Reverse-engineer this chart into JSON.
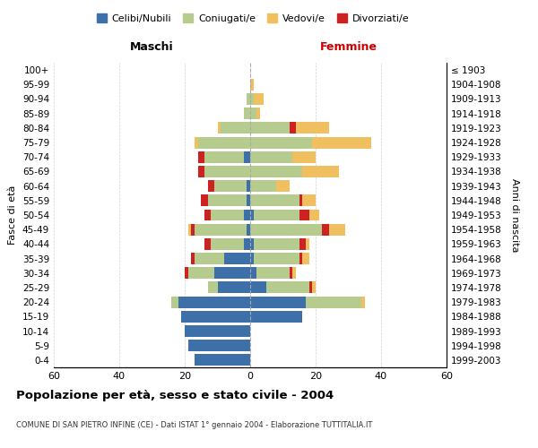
{
  "age_groups": [
    "0-4",
    "5-9",
    "10-14",
    "15-19",
    "20-24",
    "25-29",
    "30-34",
    "35-39",
    "40-44",
    "45-49",
    "50-54",
    "55-59",
    "60-64",
    "65-69",
    "70-74",
    "75-79",
    "80-84",
    "85-89",
    "90-94",
    "95-99",
    "100+"
  ],
  "birth_years": [
    "1999-2003",
    "1994-1998",
    "1989-1993",
    "1984-1988",
    "1979-1983",
    "1974-1978",
    "1969-1973",
    "1964-1968",
    "1959-1963",
    "1954-1958",
    "1949-1953",
    "1944-1948",
    "1939-1943",
    "1934-1938",
    "1929-1933",
    "1924-1928",
    "1919-1923",
    "1914-1918",
    "1909-1913",
    "1904-1908",
    "≤ 1903"
  ],
  "colors": {
    "celibe": "#3d6fa8",
    "coniugato": "#b5cc8e",
    "vedovo": "#f0c060",
    "divorziato": "#cc2222"
  },
  "male": {
    "celibe": [
      17,
      19,
      20,
      21,
      22,
      10,
      11,
      8,
      2,
      1,
      2,
      1,
      1,
      0,
      2,
      0,
      0,
      0,
      0,
      0,
      0
    ],
    "coniugato": [
      0,
      0,
      0,
      0,
      2,
      3,
      8,
      9,
      10,
      16,
      10,
      12,
      10,
      14,
      12,
      16,
      9,
      2,
      1,
      0,
      0
    ],
    "vedovo": [
      0,
      0,
      0,
      0,
      0,
      0,
      0,
      0,
      0,
      1,
      0,
      0,
      0,
      0,
      0,
      1,
      1,
      0,
      0,
      0,
      0
    ],
    "divorziato": [
      0,
      0,
      0,
      0,
      0,
      0,
      1,
      1,
      2,
      1,
      2,
      2,
      2,
      2,
      2,
      0,
      0,
      0,
      0,
      0,
      0
    ]
  },
  "female": {
    "nubile": [
      0,
      0,
      0,
      16,
      17,
      5,
      2,
      1,
      1,
      0,
      1,
      0,
      0,
      0,
      0,
      0,
      0,
      0,
      0,
      0,
      0
    ],
    "coniugata": [
      0,
      0,
      0,
      0,
      17,
      13,
      10,
      14,
      14,
      22,
      14,
      15,
      8,
      16,
      13,
      19,
      12,
      2,
      1,
      0,
      0
    ],
    "vedova": [
      0,
      0,
      0,
      0,
      1,
      1,
      1,
      2,
      1,
      5,
      3,
      4,
      4,
      11,
      7,
      18,
      10,
      1,
      3,
      1,
      0
    ],
    "divorziata": [
      0,
      0,
      0,
      0,
      0,
      1,
      1,
      1,
      2,
      2,
      3,
      1,
      0,
      0,
      0,
      0,
      2,
      0,
      0,
      0,
      0
    ]
  },
  "xlim": 60,
  "xticks": [
    -60,
    -40,
    -20,
    0,
    20,
    40,
    60
  ],
  "title": "Popolazione per età, sesso e stato civile - 2004",
  "subtitle": "COMUNE DI SAN PIETRO INFINE (CE) - Dati ISTAT 1° gennaio 2004 - Elaborazione TUTTITALIA.IT",
  "xlabel_left": "Maschi",
  "xlabel_right": "Femmine",
  "ylabel": "Fasce di età",
  "ylabel_right": "Anni di nascita",
  "legend_labels": [
    "Celibi/Nubili",
    "Coniugati/e",
    "Vedovi/e",
    "Divorziati/e"
  ]
}
